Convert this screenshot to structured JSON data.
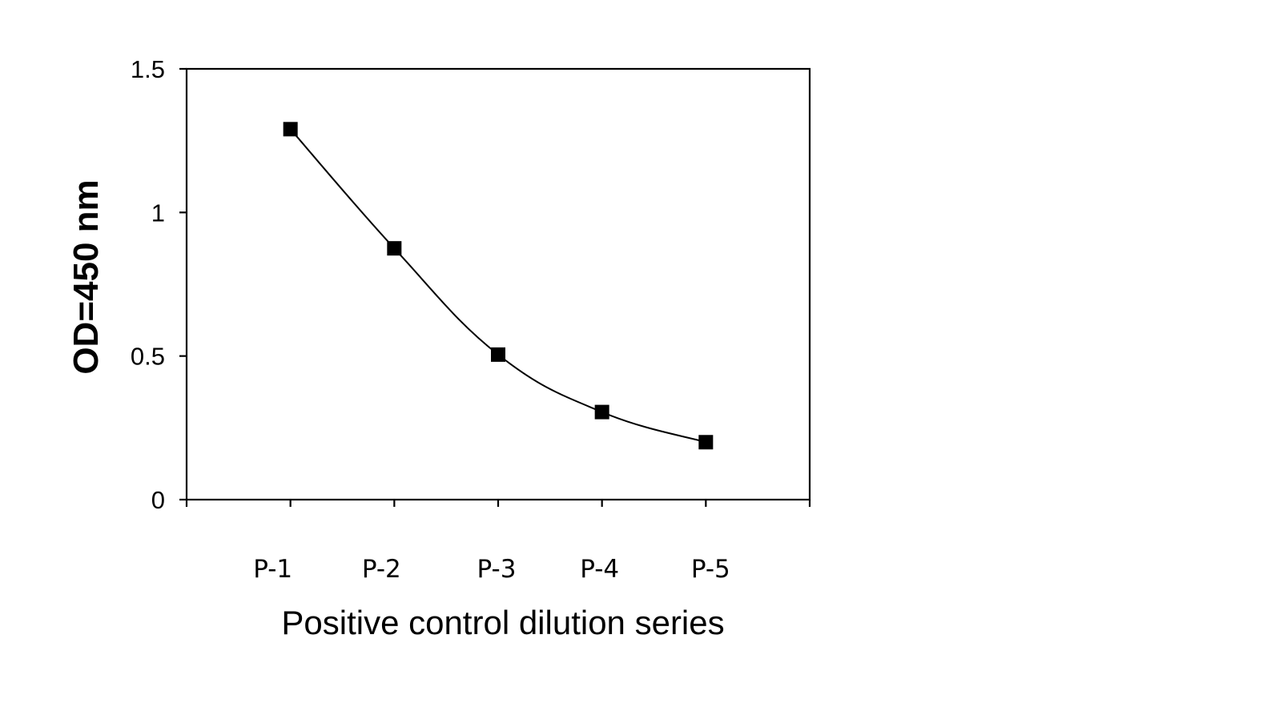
{
  "chart_data": {
    "type": "line",
    "title": "",
    "xlabel": "Positive control dilution series",
    "ylabel": "OD=450 nm",
    "categories": [
      "P-1",
      "P-2",
      "P-3",
      "P-4",
      "P-5"
    ],
    "series": [
      {
        "values": [
          1.29,
          0.875,
          0.505,
          0.305,
          0.2
        ]
      }
    ],
    "ylim": [
      0,
      1.5
    ],
    "yticks": [
      0,
      0.5,
      1,
      1.5
    ],
    "ytick_labels": [
      "0",
      "0.5",
      "1",
      "1.5"
    ],
    "grid": false,
    "legend": "none",
    "smooth": true,
    "marker": "square",
    "colors": {
      "line": "#000000",
      "marker": "#000000",
      "axes": "#000000"
    }
  }
}
